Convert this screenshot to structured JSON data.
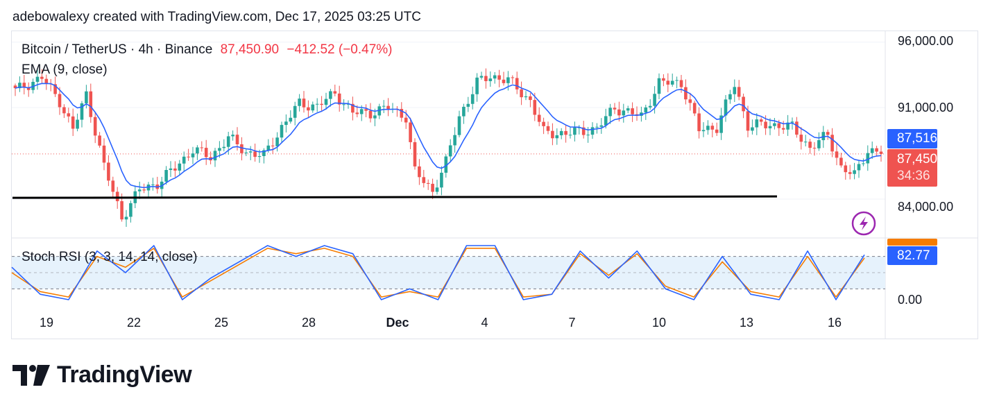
{
  "attribution": "adebowalexy created with TradingView.com, Dec 17, 2025 03:25 UTC",
  "legend": {
    "symbol": "Bitcoin / TetherUS · 4h · Binance",
    "last_price": "87,450.90",
    "change": "−412.52 (−0.47%)",
    "ema": "EMA (9, close)",
    "stoch_rsi": "Stoch RSI (3, 3, 14, 14, close)"
  },
  "price_axis": {
    "ticks": [
      "96,000.00",
      "91,000.00",
      "84,000.00"
    ],
    "ema_tag": "87,516.41",
    "last_tag": "87,450.90",
    "countdown": "34:36"
  },
  "rsi_axis": {
    "value_tag": "82.77",
    "zero": "0.00"
  },
  "time_axis": [
    "19",
    "22",
    "25",
    "28",
    "Dec",
    "4",
    "7",
    "10",
    "13",
    "16"
  ],
  "footer": {
    "brand": "TradingView"
  },
  "colors": {
    "up": "#26a69a",
    "down": "#ef5350",
    "ema": "#2962ff",
    "stoch_k": "#2962ff",
    "stoch_d": "#f57c00",
    "support": "#000000",
    "rsi_band": "#e6f2fc"
  },
  "chart_data": [
    {
      "type": "candlestick",
      "title": "Bitcoin / TetherUS · 4h · Binance",
      "ylim": [
        82000,
        97000
      ],
      "x_ticks": [
        "19",
        "22",
        "25",
        "28",
        "Dec",
        "4",
        "7",
        "10",
        "13",
        "16"
      ],
      "close_anchors": [
        {
          "x": 0,
          "close": 92300
        },
        {
          "x": 6,
          "close": 93300
        },
        {
          "x": 10,
          "close": 91500
        },
        {
          "x": 13,
          "close": 89300
        },
        {
          "x": 16,
          "close": 92000
        },
        {
          "x": 20,
          "close": 86500
        },
        {
          "x": 24,
          "close": 82600
        },
        {
          "x": 28,
          "close": 84700
        },
        {
          "x": 32,
          "close": 85200
        },
        {
          "x": 36,
          "close": 86400
        },
        {
          "x": 40,
          "close": 87800
        },
        {
          "x": 44,
          "close": 87200
        },
        {
          "x": 48,
          "close": 88700
        },
        {
          "x": 52,
          "close": 87600
        },
        {
          "x": 56,
          "close": 87300
        },
        {
          "x": 60,
          "close": 89500
        },
        {
          "x": 64,
          "close": 91300
        },
        {
          "x": 68,
          "close": 91100
        },
        {
          "x": 72,
          "close": 92100
        },
        {
          "x": 76,
          "close": 90600
        },
        {
          "x": 80,
          "close": 90600
        },
        {
          "x": 84,
          "close": 91000
        },
        {
          "x": 88,
          "close": 90300
        },
        {
          "x": 90,
          "close": 86100
        },
        {
          "x": 94,
          "close": 84600
        },
        {
          "x": 97,
          "close": 86800
        },
        {
          "x": 100,
          "close": 90300
        },
        {
          "x": 104,
          "close": 92900
        },
        {
          "x": 107,
          "close": 93400
        },
        {
          "x": 111,
          "close": 93100
        },
        {
          "x": 116,
          "close": 91500
        },
        {
          "x": 119,
          "close": 89100
        },
        {
          "x": 124,
          "close": 89000
        },
        {
          "x": 131,
          "close": 89400
        },
        {
          "x": 135,
          "close": 91000
        },
        {
          "x": 141,
          "close": 90300
        },
        {
          "x": 145,
          "close": 92900
        },
        {
          "x": 150,
          "close": 92900
        },
        {
          "x": 154,
          "close": 89300
        },
        {
          "x": 158,
          "close": 89500
        },
        {
          "x": 162,
          "close": 92800
        },
        {
          "x": 165,
          "close": 89600
        },
        {
          "x": 170,
          "close": 89700
        },
        {
          "x": 175,
          "close": 89500
        },
        {
          "x": 179,
          "close": 87900
        },
        {
          "x": 183,
          "close": 88900
        },
        {
          "x": 186,
          "close": 86400
        },
        {
          "x": 189,
          "close": 85800
        },
        {
          "x": 192,
          "close": 87800
        },
        {
          "x": 195,
          "close": 87451
        }
      ],
      "support_level": 84150,
      "last_price": 87450.9,
      "ema_value": 87516.41
    },
    {
      "type": "line",
      "title": "Stoch RSI (3, 3, 14, 14, close)",
      "ylim": [
        0,
        100
      ],
      "band": [
        20,
        80
      ],
      "series": [
        {
          "values_k": [
            60,
            10,
            0,
            90,
            50,
            100,
            0,
            40,
            70,
            100,
            80,
            100,
            85,
            0,
            20,
            0,
            100,
            100,
            0,
            10,
            90,
            40,
            90,
            20,
            0,
            80,
            10,
            0,
            90,
            0,
            83
          ]
        },
        {
          "values_d": [
            50,
            15,
            5,
            80,
            60,
            95,
            5,
            35,
            65,
            95,
            85,
            95,
            80,
            5,
            15,
            5,
            95,
            95,
            5,
            10,
            85,
            45,
            85,
            25,
            5,
            70,
            15,
            5,
            80,
            5,
            77
          ]
        }
      ],
      "last_value": 82.77
    }
  ]
}
